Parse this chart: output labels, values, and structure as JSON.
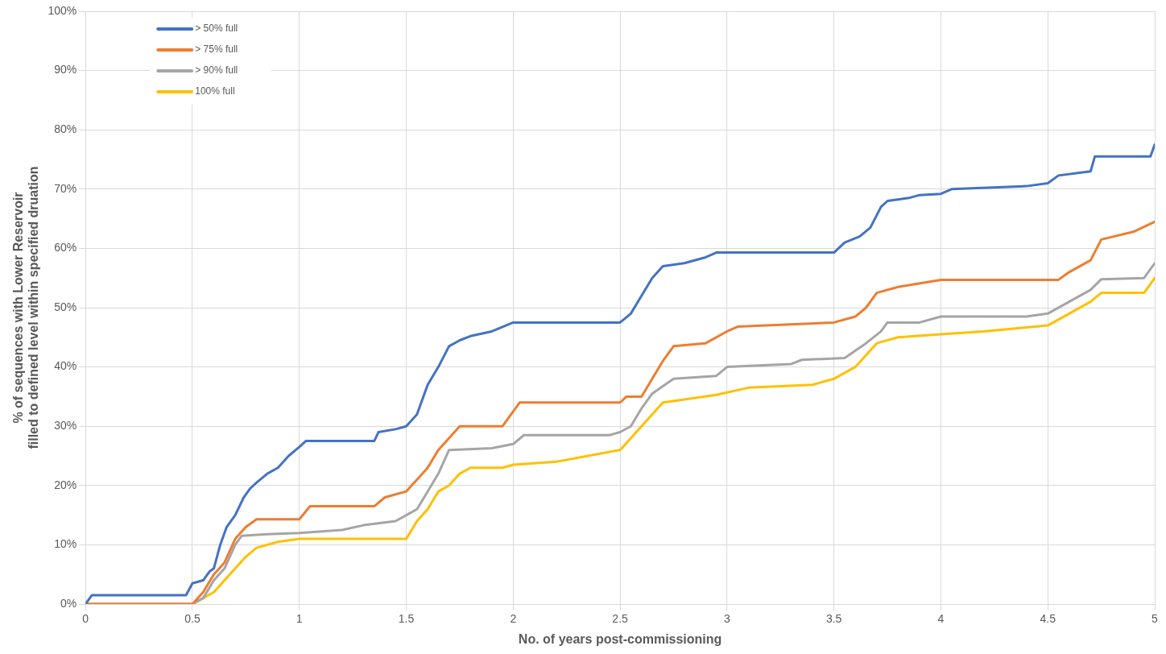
{
  "chart_data": {
    "type": "line",
    "xlabel": "No. of years post-commissioning",
    "ylabel": "% of sequences with Lower Reservoir\nfilled to defined level within specified druation",
    "xlim": [
      0,
      5
    ],
    "xticks": [
      0,
      0.5,
      1,
      1.5,
      2,
      2.5,
      3,
      3.5,
      4,
      4.5,
      5
    ],
    "ylim": [
      0,
      100
    ],
    "yticks": [
      {
        "value": 0,
        "label": "0%"
      },
      {
        "value": 10,
        "label": "10%"
      },
      {
        "value": 20,
        "label": "20%"
      },
      {
        "value": 30,
        "label": "30%"
      },
      {
        "value": 40,
        "label": "40%"
      },
      {
        "value": 50,
        "label": "50%"
      },
      {
        "value": 60,
        "label": "60%"
      },
      {
        "value": 70,
        "label": "70%"
      },
      {
        "value": 80,
        "label": "80%"
      },
      {
        "value": 90,
        "label": "90%"
      },
      {
        "value": 100,
        "label": "100%"
      }
    ],
    "grid": true,
    "legend": "top left",
    "marker": "none",
    "line_style": "solid",
    "series": [
      {
        "name": "> 50% full",
        "color": "#4472c4",
        "x": [
          0,
          0.03,
          0.47,
          0.5,
          0.55,
          0.58,
          0.6,
          0.63,
          0.66,
          0.7,
          0.74,
          0.77,
          0.8,
          0.85,
          0.9,
          0.95,
          1.0,
          1.03,
          1.35,
          1.37,
          1.45,
          1.5,
          1.55,
          1.6,
          1.65,
          1.7,
          1.75,
          1.8,
          1.9,
          2.0,
          2.5,
          2.55,
          2.6,
          2.65,
          2.7,
          2.8,
          2.9,
          2.95,
          3.5,
          3.55,
          3.62,
          3.67,
          3.72,
          3.75,
          3.85,
          3.9,
          4.0,
          4.05,
          4.4,
          4.5,
          4.55,
          4.7,
          4.72,
          4.98,
          5.0
        ],
        "values": [
          0,
          1.5,
          1.5,
          3.5,
          4,
          5.5,
          6,
          10,
          13,
          15,
          18,
          19.5,
          20.5,
          22,
          23,
          25,
          26.5,
          27.5,
          27.5,
          29,
          29.5,
          30,
          32,
          37,
          40,
          43.5,
          44.5,
          45.2,
          46,
          47.5,
          47.5,
          49,
          52,
          55,
          57,
          57.5,
          58.5,
          59.3,
          59.3,
          61,
          62,
          63.5,
          67,
          68,
          68.5,
          69,
          69.2,
          70,
          70.5,
          71,
          72.3,
          73,
          75.5,
          75.5,
          77.5
        ]
      },
      {
        "name": "> 75% full",
        "color": "#ed7d31",
        "x": [
          0,
          0.5,
          0.55,
          0.6,
          0.65,
          0.7,
          0.75,
          0.8,
          1.0,
          1.05,
          1.35,
          1.4,
          1.5,
          1.55,
          1.6,
          1.65,
          1.7,
          1.75,
          1.95,
          2.0,
          2.03,
          2.5,
          2.53,
          2.6,
          2.65,
          2.7,
          2.75,
          2.9,
          3.0,
          3.05,
          3.5,
          3.6,
          3.65,
          3.7,
          3.8,
          4.0,
          4.55,
          4.6,
          4.7,
          4.75,
          4.9,
          5.0
        ],
        "values": [
          0,
          0,
          2,
          5,
          7,
          11,
          13,
          14.3,
          14.3,
          16.5,
          16.5,
          18,
          19,
          21,
          23,
          26,
          28,
          30,
          30,
          32.5,
          34,
          34,
          35,
          35,
          38,
          41,
          43.5,
          44,
          46,
          46.8,
          47.5,
          48.5,
          50,
          52.5,
          53.5,
          54.7,
          54.7,
          56,
          58,
          61.5,
          62.8,
          64.5
        ]
      },
      {
        "name": "> 90% full",
        "color": "#a5a5a5",
        "x": [
          0,
          0.5,
          0.55,
          0.6,
          0.65,
          0.7,
          0.73,
          0.85,
          1.0,
          1.2,
          1.3,
          1.45,
          1.5,
          1.55,
          1.6,
          1.65,
          1.7,
          1.9,
          2.0,
          2.05,
          2.45,
          2.5,
          2.55,
          2.6,
          2.65,
          2.75,
          2.95,
          3.0,
          3.3,
          3.35,
          3.55,
          3.65,
          3.72,
          3.75,
          3.9,
          4.0,
          4.4,
          4.5,
          4.6,
          4.7,
          4.75,
          4.95,
          5.0
        ],
        "values": [
          0,
          0,
          1,
          4,
          6,
          10,
          11.5,
          11.8,
          12,
          12.5,
          13.3,
          14,
          15,
          16,
          19,
          22,
          26,
          26.3,
          27,
          28.5,
          28.5,
          29,
          30,
          33,
          35.5,
          38,
          38.5,
          40,
          40.5,
          41.2,
          41.5,
          44,
          46,
          47.5,
          47.5,
          48.5,
          48.5,
          49,
          51,
          53,
          54.8,
          55,
          57.5
        ]
      },
      {
        "name": "100% full",
        "color": "#ffc000",
        "x": [
          0,
          0.5,
          0.6,
          0.65,
          0.7,
          0.75,
          0.8,
          0.9,
          1.0,
          1.5,
          1.55,
          1.6,
          1.65,
          1.7,
          1.75,
          1.8,
          1.95,
          2.0,
          2.2,
          2.35,
          2.5,
          2.55,
          2.6,
          2.65,
          2.7,
          2.8,
          2.95,
          3.1,
          3.4,
          3.5,
          3.6,
          3.65,
          3.7,
          3.8,
          4.0,
          4.2,
          4.5,
          4.6,
          4.7,
          4.75,
          4.95,
          5.0
        ],
        "values": [
          0,
          0,
          2,
          4,
          6,
          8,
          9.5,
          10.5,
          11,
          11,
          14,
          16,
          19,
          20,
          22,
          23,
          23,
          23.5,
          24,
          25,
          26,
          28,
          30,
          32,
          34,
          34.5,
          35.3,
          36.5,
          37,
          38,
          40,
          42,
          44,
          45,
          45.5,
          46,
          47,
          49,
          51,
          52.5,
          52.5,
          55
        ]
      }
    ]
  }
}
